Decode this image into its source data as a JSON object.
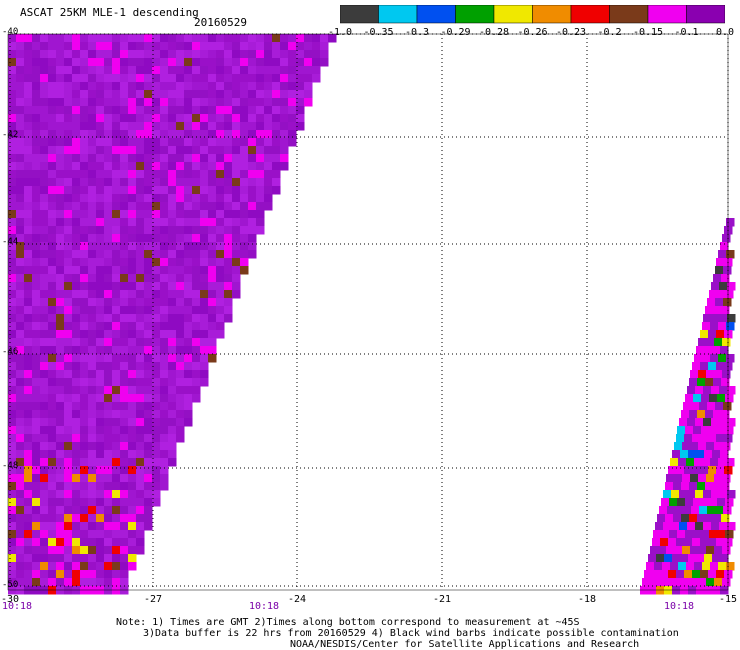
{
  "header": {
    "title": "ASCAT 25KM MLE-1 descending",
    "date": "20160529"
  },
  "colorbar": {
    "labels": [
      "-1.0",
      "-0.35",
      "-0.3",
      "-0.29",
      "-0.28",
      "-0.26",
      "-0.23",
      "-0.2",
      "-0.15",
      "-0.1",
      "0.0"
    ],
    "colors": [
      "#3c3c3c",
      "#00c8f0",
      "#0050f0",
      "#00a000",
      "#f0e800",
      "#f08c00",
      "#f00000",
      "#7a3a1a",
      "#f000f0",
      "#8a00b0"
    ]
  },
  "map": {
    "lon_ticks": [
      "-30",
      "-27",
      "-24",
      "-21",
      "-18",
      "-15"
    ],
    "lat_ticks": [
      "-40",
      "-42",
      "-44",
      "-46",
      "-48",
      "-50"
    ],
    "times": [
      "10:18",
      "10:18",
      "10:18"
    ],
    "dominant_color": "#9a10c8",
    "gridline_style": "dotted"
  },
  "footer": {
    "note1": "Note: 1) Times are GMT 2)Times along bottom correspond to measurement at ~45S",
    "note2": "3)Data buffer is 22 hrs from 20160529 4) Black wind barbs indicate possible contamination",
    "note3": "NOAA/NESDIS/Center for Satellite Applications and Research"
  }
}
